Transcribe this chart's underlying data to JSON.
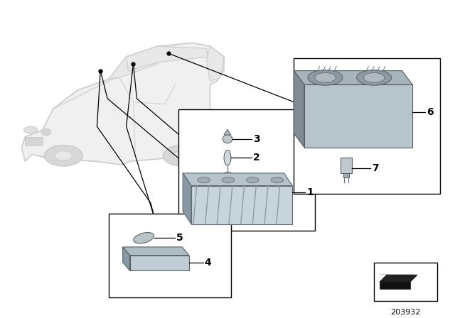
{
  "bg_color": "#ffffff",
  "line_color": "#000000",
  "part_number": "203932",
  "car_color": "#cccccc",
  "component_color": "#b0b8c0",
  "component_dark": "#808890",
  "box_edge_color": "#000000"
}
